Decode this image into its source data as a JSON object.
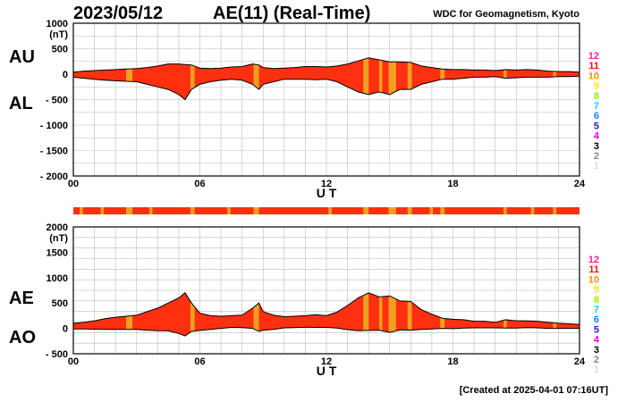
{
  "header": {
    "date": "2023/05/12",
    "title": "AE(11) (Real-Time)",
    "source": "WDC for Geomagnetism, Kyoto"
  },
  "footer": {
    "created": "[Created at 2025-04-01 07:16UT]"
  },
  "colors": {
    "fill": "#ff3010",
    "yellow": "#f0a020",
    "band": "#ff3010"
  },
  "station_count_legend": [
    {
      "label": "12",
      "color": "#ff2090"
    },
    {
      "label": "11",
      "color": "#ff1010"
    },
    {
      "label": "10",
      "color": "#ff9000"
    },
    {
      "label": "9",
      "color": "#ffee00"
    },
    {
      "label": "8",
      "color": "#99ee00"
    },
    {
      "label": "7",
      "color": "#00dddd"
    },
    {
      "label": "6",
      "color": "#1f7fff"
    },
    {
      "label": "5",
      "color": "#2020cc"
    },
    {
      "label": "4",
      "color": "#dd00dd"
    },
    {
      "label": "3",
      "color": "#000000"
    },
    {
      "label": "2",
      "color": "#888888"
    },
    {
      "label": "1",
      "color": "#dddddd"
    }
  ],
  "yellow_segments_ut": [
    [
      2.5,
      2.8
    ],
    [
      5.55,
      5.75
    ],
    [
      8.55,
      8.8
    ],
    [
      13.75,
      14.0
    ],
    [
      14.5,
      14.65
    ],
    [
      14.95,
      15.3
    ],
    [
      15.85,
      16.05
    ],
    [
      17.4,
      17.6
    ],
    [
      20.4,
      20.55
    ],
    [
      22.75,
      22.9
    ]
  ],
  "band_segments_ut": [
    [
      0.3,
      0.45
    ],
    [
      1.3,
      1.45
    ],
    [
      2.5,
      2.8
    ],
    [
      3.6,
      3.75
    ],
    [
      5.55,
      5.75
    ],
    [
      7.3,
      7.45
    ],
    [
      8.55,
      8.8
    ],
    [
      12.1,
      12.25
    ],
    [
      13.75,
      14.0
    ],
    [
      14.95,
      15.3
    ],
    [
      15.85,
      16.05
    ],
    [
      16.9,
      17.05
    ],
    [
      17.4,
      17.6
    ],
    [
      20.4,
      20.55
    ],
    [
      21.7,
      21.85
    ],
    [
      22.75,
      22.9
    ]
  ],
  "chart_data": [
    {
      "type": "area",
      "ylim": [
        -2000,
        1000
      ],
      "xlim": [
        0,
        24
      ],
      "yticks": [
        1000,
        500,
        0,
        -500,
        -1000,
        -1500,
        -2000
      ],
      "ytick_labels": [
        "1000",
        "(nT)",
        "500",
        "0",
        "- 500",
        "- 1000",
        "- 1500",
        "- 2000"
      ],
      "xticks": [
        0,
        6,
        12,
        18,
        24
      ],
      "xtick_labels": [
        "00",
        "06",
        "12",
        "18",
        "24"
      ],
      "xlabel": "U T",
      "upper_label": "AU",
      "lower_label": "AL",
      "grid": true,
      "x": [
        0,
        0.5,
        1,
        1.5,
        2,
        2.5,
        3,
        3.5,
        4,
        4.5,
        5,
        5.3,
        5.6,
        6,
        6.5,
        7,
        7.5,
        8,
        8.5,
        8.8,
        9,
        9.5,
        10,
        10.5,
        11,
        11.5,
        12,
        12.5,
        13,
        13.5,
        14,
        14.5,
        15,
        15.5,
        16,
        16.5,
        17,
        17.5,
        18,
        18.5,
        19,
        19.5,
        20,
        20.5,
        21,
        21.5,
        22,
        22.5,
        23,
        23.5,
        24
      ],
      "series": [
        {
          "name": "AU",
          "values": [
            40,
            60,
            70,
            80,
            90,
            100,
            110,
            130,
            160,
            200,
            200,
            190,
            180,
            120,
            110,
            120,
            140,
            150,
            200,
            180,
            130,
            110,
            120,
            130,
            150,
            150,
            140,
            160,
            200,
            260,
            320,
            280,
            240,
            240,
            230,
            160,
            130,
            100,
            90,
            90,
            80,
            80,
            70,
            90,
            80,
            90,
            80,
            60,
            50,
            50,
            40
          ]
        },
        {
          "name": "AL",
          "values": [
            -60,
            -80,
            -100,
            -120,
            -130,
            -140,
            -150,
            -200,
            -250,
            -300,
            -400,
            -500,
            -300,
            -200,
            -150,
            -120,
            -100,
            -120,
            -200,
            -300,
            -200,
            -150,
            -100,
            -100,
            -100,
            -110,
            -100,
            -150,
            -250,
            -350,
            -400,
            -350,
            -400,
            -300,
            -300,
            -200,
            -150,
            -100,
            -100,
            -80,
            -60,
            -60,
            -50,
            -80,
            -70,
            -60,
            -60,
            -60,
            -50,
            -50,
            -40
          ]
        }
      ]
    },
    {
      "type": "area",
      "ylim": [
        -500,
        2000
      ],
      "xlim": [
        0,
        24
      ],
      "yticks": [
        2000,
        1500,
        1000,
        500,
        0,
        -500
      ],
      "ytick_labels": [
        "2000",
        "(nT)",
        "1500",
        "1000",
        "500",
        "0",
        "- 500"
      ],
      "xticks": [
        0,
        6,
        12,
        18,
        24
      ],
      "xtick_labels": [
        "00",
        "06",
        "12",
        "18",
        "24"
      ],
      "xlabel": "U T",
      "upper_label": "AE",
      "lower_label": "AO",
      "grid": true,
      "x": [
        0,
        0.5,
        1,
        1.5,
        2,
        2.5,
        3,
        3.5,
        4,
        4.5,
        5,
        5.3,
        5.6,
        6,
        6.5,
        7,
        7.5,
        8,
        8.5,
        8.8,
        9,
        9.5,
        10,
        10.5,
        11,
        11.5,
        12,
        12.5,
        13,
        13.5,
        14,
        14.5,
        15,
        15.5,
        16,
        16.5,
        17,
        17.5,
        18,
        18.5,
        19,
        19.5,
        20,
        20.5,
        21,
        21.5,
        22,
        22.5,
        23,
        23.5,
        24
      ],
      "series": [
        {
          "name": "AE",
          "values": [
            100,
            120,
            150,
            190,
            220,
            240,
            260,
            330,
            400,
            500,
            600,
            700,
            500,
            300,
            250,
            240,
            250,
            260,
            400,
            500,
            330,
            260,
            230,
            240,
            250,
            270,
            250,
            320,
            450,
            600,
            700,
            620,
            640,
            540,
            530,
            370,
            280,
            200,
            180,
            170,
            140,
            140,
            120,
            170,
            150,
            150,
            140,
            120,
            100,
            90,
            80
          ]
        },
        {
          "name": "AO",
          "values": [
            -10,
            -10,
            -15,
            -20,
            -20,
            -20,
            -20,
            -35,
            -45,
            -50,
            -100,
            -150,
            -60,
            -40,
            -20,
            0,
            20,
            15,
            0,
            -60,
            -35,
            -20,
            10,
            15,
            25,
            20,
            20,
            5,
            -25,
            -45,
            -40,
            -35,
            -80,
            -30,
            -35,
            -20,
            -10,
            0,
            -5,
            5,
            10,
            10,
            10,
            5,
            5,
            15,
            10,
            0,
            0,
            0,
            0
          ]
        }
      ]
    }
  ]
}
